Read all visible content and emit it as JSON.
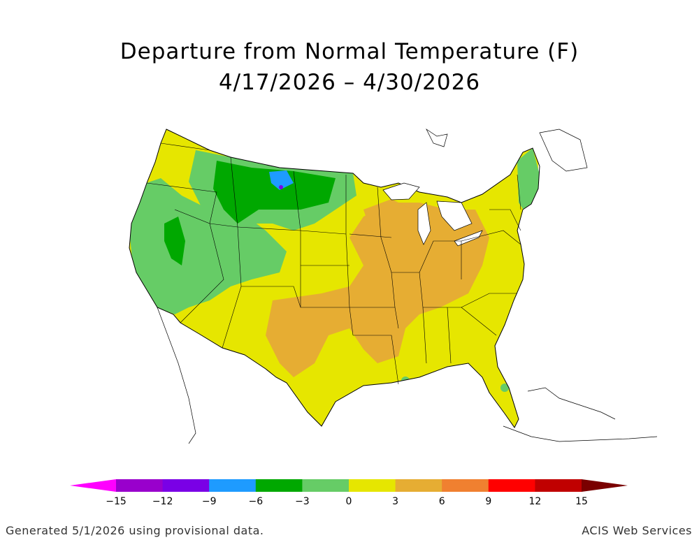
{
  "title": {
    "line1": "Departure from Normal Temperature (F)",
    "line2": "4/17/2026 – 4/30/2026"
  },
  "legend": {
    "bins": [
      {
        "color": "#ff00ff",
        "label": "-15"
      },
      {
        "color": "#9900cc",
        "label": "-12"
      },
      {
        "color": "#7a00e6",
        "label": "-9"
      },
      {
        "color": "#1e9bff",
        "label": "-6"
      },
      {
        "color": "#00a800",
        "label": "-3"
      },
      {
        "color": "#66cc66",
        "label": "0"
      },
      {
        "color": "#e6e600",
        "label": "3"
      },
      {
        "color": "#e6ad33",
        "label": "6"
      },
      {
        "color": "#f08030",
        "label": "9"
      },
      {
        "color": "#ff0000",
        "label": "12"
      },
      {
        "color": "#c00000",
        "label": "15"
      },
      {
        "color": "#7a0000",
        "label": ""
      }
    ],
    "tick_labels": [
      "−15",
      "−12",
      "−9",
      "−6",
      "−3",
      "0",
      "3",
      "6",
      "9",
      "12",
      "15"
    ]
  },
  "regions": [
    {
      "name": "pacific-northwest",
      "color": "#e6e600"
    },
    {
      "name": "great-basin",
      "color": "#66cc66"
    },
    {
      "name": "northern-rockies",
      "color": "#00a800"
    },
    {
      "name": "montana-cold-spot",
      "color": "#1e9bff"
    },
    {
      "name": "southwest",
      "color": "#e6e600"
    },
    {
      "name": "southern-plains",
      "color": "#e6ad33"
    },
    {
      "name": "midwest",
      "color": "#e6ad33"
    },
    {
      "name": "southeast",
      "color": "#e6e600"
    },
    {
      "name": "northeast",
      "color": "#e6e600"
    },
    {
      "name": "new-england",
      "color": "#66cc66"
    }
  ],
  "footer": {
    "left": "Generated 5/1/2026 using provisional data.",
    "right": "ACIS Web Services"
  }
}
